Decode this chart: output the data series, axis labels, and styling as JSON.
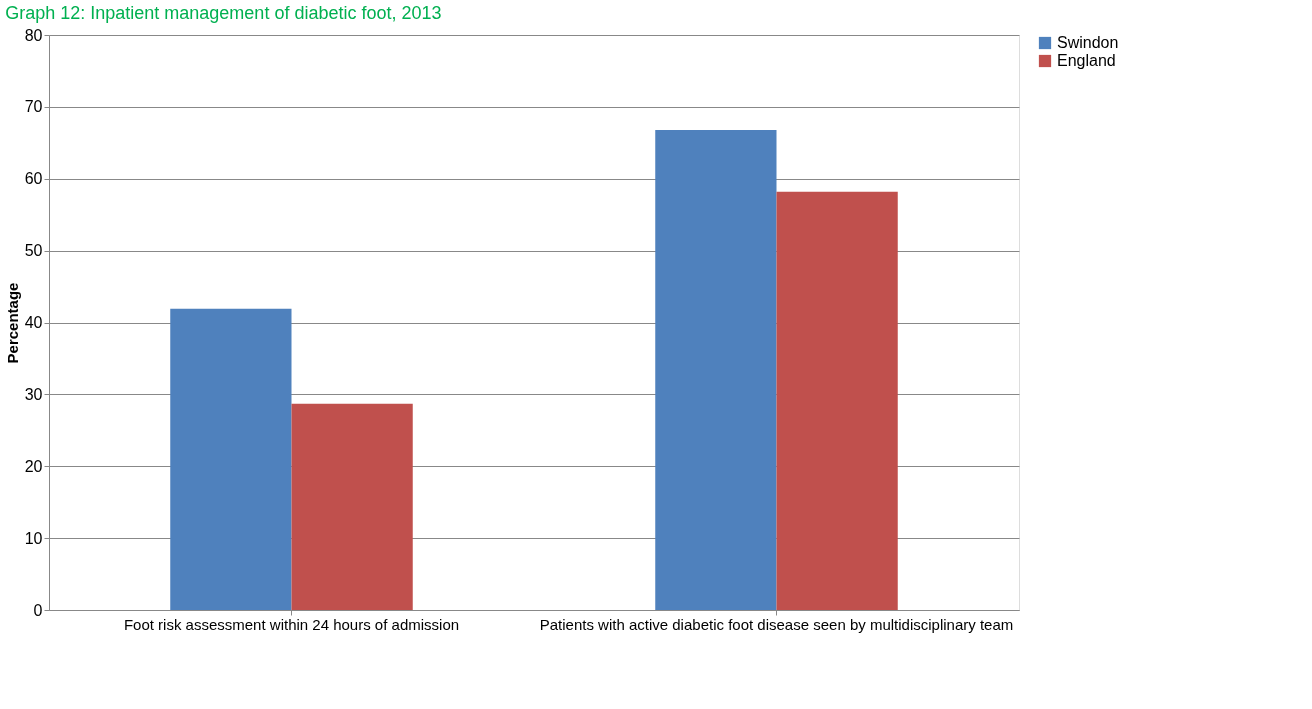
{
  "chart_data": {
    "type": "bar",
    "title": "Graph 12: Inpatient management of diabetic foot, 2013",
    "ylabel": "Percentage",
    "categories": [
      "Foot risk assessment within 24 hours of admission",
      "Patients with active diabetic foot disease seen by multidisciplinary team"
    ],
    "series": [
      {
        "name": "Swindon",
        "color": "#4f81bd",
        "values": [
          41.9,
          66.8
        ]
      },
      {
        "name": "England",
        "color": "#c0504d",
        "values": [
          28.7,
          58.2
        ]
      }
    ],
    "ylim": [
      0,
      80
    ],
    "yticks": [
      0,
      10,
      20,
      30,
      40,
      50,
      60,
      70,
      80
    ],
    "grid": "y",
    "legend": "right"
  }
}
